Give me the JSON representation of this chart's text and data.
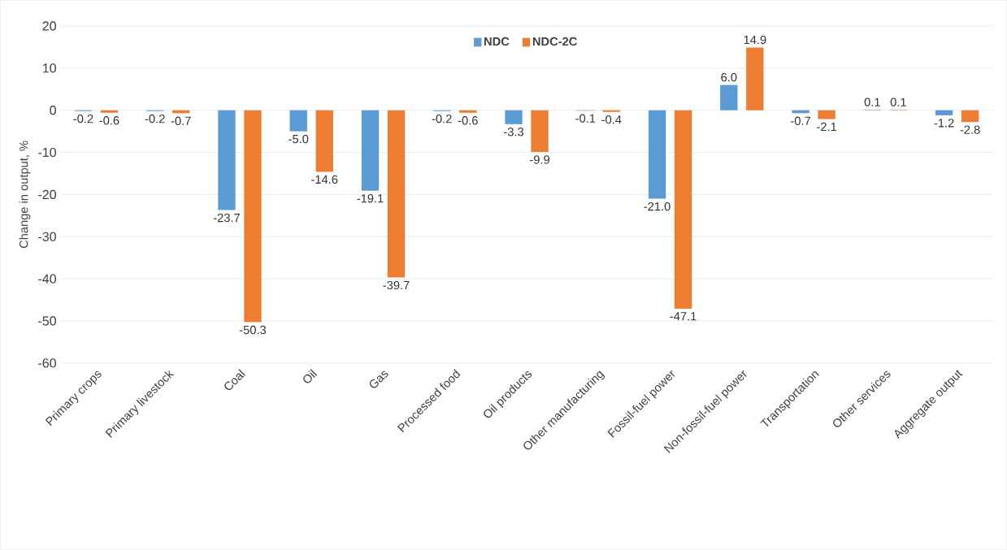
{
  "chart_data": {
    "type": "bar",
    "ylabel": "Change in output, %",
    "categories": [
      "Primary crops",
      "Primary livestock",
      "Coal",
      "Oil",
      "Gas",
      "Processed food",
      "Oil products",
      "Other manufacturing",
      "Fossil-fuel power",
      "Non-fossil-fuel power",
      "Transportation",
      "Other services",
      "Aggregate output"
    ],
    "series": [
      {
        "name": "NDC",
        "color": "#5b9bd5",
        "values": [
          -0.2,
          -0.2,
          -23.7,
          -5.0,
          -19.1,
          -0.2,
          -3.3,
          -0.1,
          -21.0,
          6.0,
          -0.7,
          0.1,
          -1.2
        ],
        "value_labels": [
          "-0.2",
          "-0.2",
          "-23.7",
          "-5.0",
          "-19.1",
          "-0.2",
          "-3.3",
          "-0.1",
          "-21.0",
          "6.0",
          "-0.7",
          "0.1",
          "-1.2"
        ]
      },
      {
        "name": "NDC-2C",
        "color": "#ed7d31",
        "values": [
          -0.6,
          -0.7,
          -50.3,
          -14.6,
          -39.7,
          -0.6,
          -9.9,
          -0.4,
          -47.1,
          14.9,
          -2.1,
          0.1,
          -2.8
        ],
        "value_labels": [
          "-0.6",
          "-0.7",
          "-50.3",
          "-14.6",
          "-39.7",
          "-0.6",
          "-9.9",
          "-0.4",
          "-47.1",
          "14.9",
          "-2.1",
          "0.1",
          "-2.8"
        ]
      }
    ],
    "ylim": [
      -60,
      20
    ],
    "yticks": [
      -60,
      -50,
      -40,
      -30,
      -20,
      -10,
      0,
      10,
      20
    ],
    "grid": "y",
    "legend": "top"
  }
}
